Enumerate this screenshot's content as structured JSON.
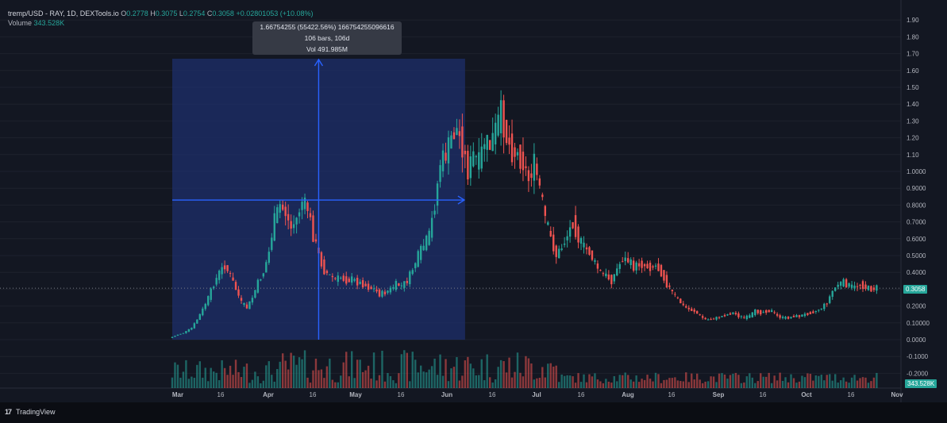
{
  "header": {
    "symbol": "tremp/USD - RAY, 1D, DEXTools.io",
    "o_label": "O",
    "o_value": "0.2778",
    "h_label": "H",
    "h_value": "0.3075",
    "l_label": "L",
    "l_value": "0.2754",
    "c_label": "C",
    "c_value": "0.3058",
    "change": "+0.02801053 (+10.08%)",
    "volume_label": "Volume",
    "volume_value": "343.528K"
  },
  "tooltip": {
    "line1": "1.66754255 (55422.56%) 166754255096616",
    "line2": "106 bars, 106d",
    "line3": "Vol 491.985M"
  },
  "price_tag": "0.3058",
  "volume_tag": "343.528K",
  "brand": "TradingView",
  "colors": {
    "up": "#26a69a",
    "down": "#ef5350",
    "measure_fill": "#1e2f6b",
    "measure_line": "#2962ff",
    "background": "#131722",
    "grid": "#1e222d"
  },
  "chart_data": {
    "type": "candlestick",
    "title": "tremp/USD - RAY, 1D, DEXTools.io",
    "y_ticks": [
      "1.90",
      "1.80",
      "1.70",
      "1.60",
      "1.50",
      "1.40",
      "1.30",
      "1.20",
      "1.10",
      "1.0000",
      "0.9000",
      "0.8000",
      "0.7000",
      "0.6000",
      "0.5000",
      "0.4000",
      "0.3000",
      "0.2000",
      "0.10000",
      "0.0000",
      "-0.1000",
      "-0.2000"
    ],
    "ylim": [
      -0.25,
      1.95
    ],
    "x_ticks": [
      "Mar",
      "16",
      "Apr",
      "16",
      "May",
      "16",
      "Jun",
      "16",
      "Jul",
      "16",
      "Aug",
      "16",
      "Sep",
      "16",
      "Oct",
      "16",
      "Nov"
    ],
    "close_series": [
      [
        0,
        0.01
      ],
      [
        3,
        0.03
      ],
      [
        5,
        0.04
      ],
      [
        8,
        0.07
      ],
      [
        10,
        0.12
      ],
      [
        12,
        0.18
      ],
      [
        14,
        0.25
      ],
      [
        16,
        0.33
      ],
      [
        18,
        0.4
      ],
      [
        20,
        0.44
      ],
      [
        22,
        0.38
      ],
      [
        24,
        0.3
      ],
      [
        26,
        0.22
      ],
      [
        28,
        0.19
      ],
      [
        30,
        0.25
      ],
      [
        32,
        0.34
      ],
      [
        34,
        0.4
      ],
      [
        36,
        0.52
      ],
      [
        38,
        0.72
      ],
      [
        40,
        0.8
      ],
      [
        42,
        0.75
      ],
      [
        44,
        0.66
      ],
      [
        46,
        0.72
      ],
      [
        48,
        0.82
      ],
      [
        50,
        0.78
      ],
      [
        52,
        0.62
      ],
      [
        54,
        0.5
      ],
      [
        56,
        0.41
      ],
      [
        58,
        0.38
      ],
      [
        60,
        0.36
      ],
      [
        62,
        0.37
      ],
      [
        64,
        0.35
      ],
      [
        66,
        0.36
      ],
      [
        68,
        0.34
      ],
      [
        70,
        0.33
      ],
      [
        72,
        0.31
      ],
      [
        74,
        0.3
      ],
      [
        76,
        0.27
      ],
      [
        78,
        0.28
      ],
      [
        80,
        0.3
      ],
      [
        82,
        0.33
      ],
      [
        84,
        0.32
      ],
      [
        86,
        0.35
      ],
      [
        88,
        0.42
      ],
      [
        90,
        0.5
      ],
      [
        92,
        0.56
      ],
      [
        94,
        0.62
      ],
      [
        96,
        0.8
      ],
      [
        98,
        1.05
      ],
      [
        100,
        1.1
      ],
      [
        102,
        1.2
      ],
      [
        104,
        1.25
      ],
      [
        106,
        1.15
      ],
      [
        108,
        1.0
      ],
      [
        110,
        1.1
      ],
      [
        112,
        1.05
      ],
      [
        114,
        1.18
      ],
      [
        116,
        1.15
      ],
      [
        118,
        1.25
      ],
      [
        120,
        1.35
      ],
      [
        122,
        1.2
      ],
      [
        124,
        1.12
      ],
      [
        126,
        1.1
      ],
      [
        128,
        1.05
      ],
      [
        130,
        0.95
      ],
      [
        132,
        1.05
      ],
      [
        134,
        0.9
      ],
      [
        136,
        0.72
      ],
      [
        138,
        0.6
      ],
      [
        140,
        0.5
      ],
      [
        142,
        0.55
      ],
      [
        144,
        0.62
      ],
      [
        146,
        0.7
      ],
      [
        148,
        0.6
      ],
      [
        150,
        0.55
      ],
      [
        152,
        0.52
      ],
      [
        154,
        0.45
      ],
      [
        156,
        0.4
      ],
      [
        158,
        0.38
      ],
      [
        160,
        0.35
      ],
      [
        162,
        0.42
      ],
      [
        164,
        0.48
      ],
      [
        166,
        0.47
      ],
      [
        168,
        0.43
      ],
      [
        170,
        0.45
      ],
      [
        172,
        0.44
      ],
      [
        174,
        0.43
      ],
      [
        176,
        0.44
      ],
      [
        178,
        0.4
      ],
      [
        180,
        0.33
      ],
      [
        182,
        0.28
      ],
      [
        184,
        0.24
      ],
      [
        186,
        0.2
      ],
      [
        188,
        0.18
      ],
      [
        190,
        0.17
      ],
      [
        192,
        0.14
      ],
      [
        194,
        0.12
      ],
      [
        196,
        0.12
      ],
      [
        198,
        0.13
      ],
      [
        200,
        0.14
      ],
      [
        202,
        0.15
      ],
      [
        204,
        0.16
      ],
      [
        206,
        0.14
      ],
      [
        208,
        0.13
      ],
      [
        210,
        0.14
      ],
      [
        212,
        0.17
      ],
      [
        214,
        0.16
      ],
      [
        216,
        0.17
      ],
      [
        218,
        0.17
      ],
      [
        220,
        0.14
      ],
      [
        222,
        0.13
      ],
      [
        224,
        0.13
      ],
      [
        226,
        0.14
      ],
      [
        228,
        0.14
      ],
      [
        230,
        0.15
      ],
      [
        232,
        0.16
      ],
      [
        234,
        0.17
      ],
      [
        236,
        0.19
      ],
      [
        238,
        0.22
      ],
      [
        240,
        0.29
      ],
      [
        242,
        0.33
      ],
      [
        244,
        0.34
      ],
      [
        246,
        0.32
      ],
      [
        248,
        0.31
      ],
      [
        250,
        0.33
      ],
      [
        252,
        0.31
      ],
      [
        254,
        0.3
      ],
      [
        256,
        0.31
      ]
    ],
    "measure": {
      "from_day": 0,
      "to_day": 106,
      "low": 0.0,
      "high": 1.67,
      "mid_price": 0.83
    },
    "current_price": 0.3058
  }
}
